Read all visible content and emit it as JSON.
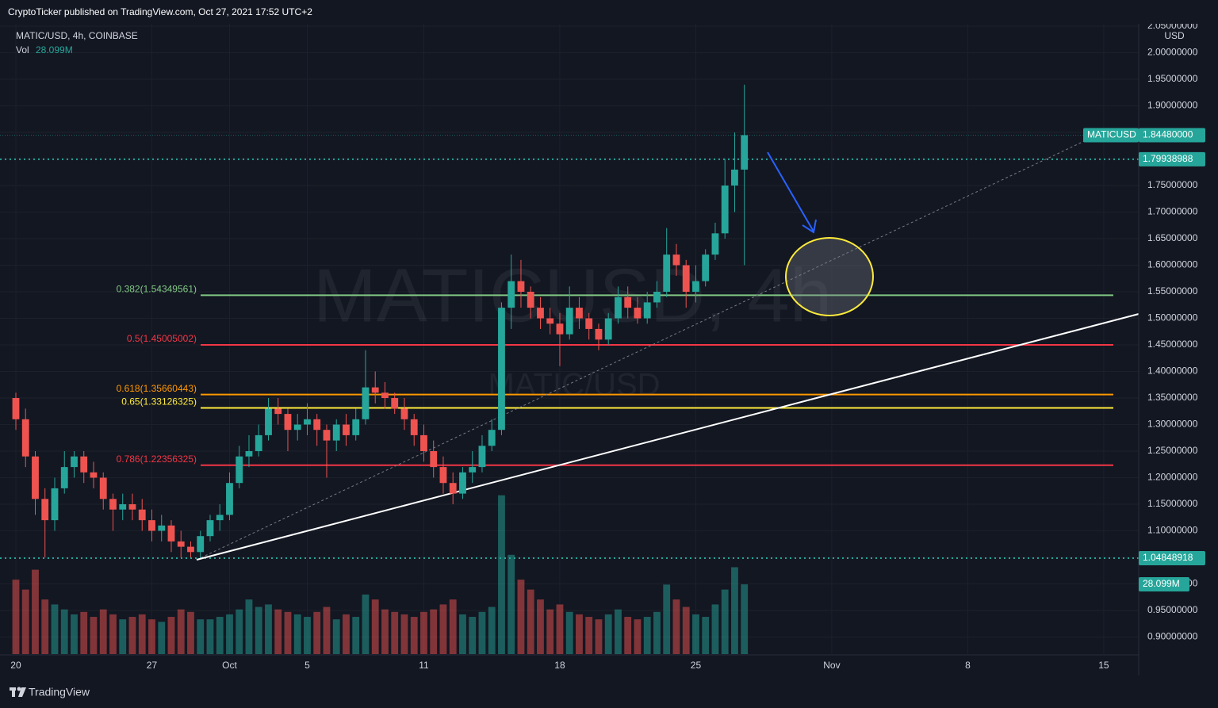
{
  "header": {
    "publisher": "CryptoTicker published on TradingView.com, Oct 27, 2021 17:52 UTC+2"
  },
  "chart_data": {
    "type": "candlestick",
    "symbol": "MATIC/USD, 4h, COINBASE",
    "watermark": "MATICUSD, 4h",
    "watermark_sub": "MATIC/USD",
    "currency": "USD",
    "volume_title": "Vol",
    "volume_label": "28.099M",
    "x": [
      "2021-09-20T00:00",
      "2021-09-20T12:00",
      "2021-09-21T00:00",
      "2021-09-21T12:00",
      "2021-09-22T00:00",
      "2021-09-22T12:00",
      "2021-09-23T00:00",
      "2021-09-23T12:00",
      "2021-09-24T00:00",
      "2021-09-24T12:00",
      "2021-09-25T00:00",
      "2021-09-25T12:00",
      "2021-09-26T00:00",
      "2021-09-26T12:00",
      "2021-09-27T00:00",
      "2021-09-27T12:00",
      "2021-09-28T00:00",
      "2021-09-28T12:00",
      "2021-09-29T00:00",
      "2021-09-29T12:00",
      "2021-09-30T00:00",
      "2021-09-30T12:00",
      "2021-10-01T00:00",
      "2021-10-01T12:00",
      "2021-10-02T00:00",
      "2021-10-02T12:00",
      "2021-10-03T00:00",
      "2021-10-03T12:00",
      "2021-10-04T00:00",
      "2021-10-04T12:00",
      "2021-10-05T00:00",
      "2021-10-05T12:00",
      "2021-10-06T00:00",
      "2021-10-06T12:00",
      "2021-10-07T00:00",
      "2021-10-07T12:00",
      "2021-10-08T00:00",
      "2021-10-08T12:00",
      "2021-10-09T00:00",
      "2021-10-09T12:00",
      "2021-10-10T00:00",
      "2021-10-10T12:00",
      "2021-10-11T00:00",
      "2021-10-11T12:00",
      "2021-10-12T00:00",
      "2021-10-12T12:00",
      "2021-10-13T00:00",
      "2021-10-13T12:00",
      "2021-10-14T00:00",
      "2021-10-14T12:00",
      "2021-10-15T00:00",
      "2021-10-15T12:00",
      "2021-10-16T00:00",
      "2021-10-16T12:00",
      "2021-10-17T00:00",
      "2021-10-17T12:00",
      "2021-10-18T00:00",
      "2021-10-18T12:00",
      "2021-10-19T00:00",
      "2021-10-19T12:00",
      "2021-10-20T00:00",
      "2021-10-20T12:00",
      "2021-10-21T00:00",
      "2021-10-21T12:00",
      "2021-10-22T00:00",
      "2021-10-22T12:00",
      "2021-10-23T00:00",
      "2021-10-23T12:00",
      "2021-10-24T00:00",
      "2021-10-24T12:00",
      "2021-10-25T00:00",
      "2021-10-25T12:00",
      "2021-10-26T00:00",
      "2021-10-26T12:00",
      "2021-10-27T00:00",
      "2021-10-27T12:00"
    ],
    "open": [
      1.35,
      1.31,
      1.24,
      1.16,
      1.12,
      1.18,
      1.22,
      1.24,
      1.21,
      1.2,
      1.16,
      1.14,
      1.15,
      1.14,
      1.12,
      1.1,
      1.11,
      1.08,
      1.07,
      1.06,
      1.09,
      1.12,
      1.13,
      1.19,
      1.24,
      1.25,
      1.28,
      1.33,
      1.32,
      1.29,
      1.3,
      1.31,
      1.29,
      1.27,
      1.3,
      1.28,
      1.31,
      1.37,
      1.36,
      1.35,
      1.33,
      1.31,
      1.28,
      1.25,
      1.22,
      1.19,
      1.17,
      1.21,
      1.22,
      1.26,
      1.29,
      1.52,
      1.57,
      1.55,
      1.52,
      1.5,
      1.49,
      1.47,
      1.52,
      1.5,
      1.48,
      1.46,
      1.5,
      1.54,
      1.52,
      1.5,
      1.53,
      1.55,
      1.62,
      1.6,
      1.55,
      1.57,
      1.62,
      1.66,
      1.75,
      1.78
    ],
    "high": [
      1.36,
      1.33,
      1.25,
      1.18,
      1.2,
      1.25,
      1.25,
      1.25,
      1.23,
      1.21,
      1.17,
      1.17,
      1.17,
      1.16,
      1.14,
      1.13,
      1.12,
      1.1,
      1.08,
      1.1,
      1.13,
      1.15,
      1.21,
      1.26,
      1.28,
      1.3,
      1.35,
      1.35,
      1.33,
      1.32,
      1.34,
      1.32,
      1.3,
      1.31,
      1.32,
      1.33,
      1.44,
      1.4,
      1.38,
      1.36,
      1.35,
      1.32,
      1.3,
      1.27,
      1.24,
      1.21,
      1.22,
      1.25,
      1.28,
      1.31,
      1.53,
      1.62,
      1.61,
      1.56,
      1.54,
      1.52,
      1.51,
      1.56,
      1.54,
      1.51,
      1.49,
      1.51,
      1.56,
      1.56,
      1.54,
      1.55,
      1.57,
      1.67,
      1.64,
      1.61,
      1.6,
      1.63,
      1.68,
      1.8,
      1.85,
      1.94
    ],
    "low": [
      1.29,
      1.22,
      1.13,
      1.05,
      1.1,
      1.17,
      1.2,
      1.19,
      1.18,
      1.14,
      1.1,
      1.12,
      1.12,
      1.1,
      1.08,
      1.08,
      1.06,
      1.05,
      1.05,
      1.05,
      1.08,
      1.1,
      1.12,
      1.18,
      1.22,
      1.24,
      1.27,
      1.3,
      1.25,
      1.27,
      1.28,
      1.26,
      1.2,
      1.25,
      1.26,
      1.27,
      1.3,
      1.34,
      1.33,
      1.32,
      1.29,
      1.26,
      1.23,
      1.2,
      1.17,
      1.15,
      1.16,
      1.19,
      1.21,
      1.25,
      1.28,
      1.48,
      1.52,
      1.5,
      1.48,
      1.47,
      1.41,
      1.46,
      1.48,
      1.46,
      1.44,
      1.45,
      1.49,
      1.5,
      1.49,
      1.49,
      1.52,
      1.54,
      1.58,
      1.52,
      1.53,
      1.56,
      1.61,
      1.65,
      1.7,
      1.6
    ],
    "close": [
      1.31,
      1.24,
      1.16,
      1.12,
      1.18,
      1.22,
      1.24,
      1.21,
      1.2,
      1.16,
      1.14,
      1.15,
      1.14,
      1.12,
      1.1,
      1.11,
      1.08,
      1.07,
      1.06,
      1.09,
      1.12,
      1.13,
      1.19,
      1.24,
      1.25,
      1.28,
      1.33,
      1.32,
      1.29,
      1.3,
      1.31,
      1.29,
      1.27,
      1.3,
      1.28,
      1.31,
      1.37,
      1.36,
      1.35,
      1.33,
      1.31,
      1.28,
      1.25,
      1.22,
      1.19,
      1.17,
      1.21,
      1.22,
      1.26,
      1.29,
      1.52,
      1.57,
      1.55,
      1.52,
      1.5,
      1.49,
      1.47,
      1.52,
      1.5,
      1.48,
      1.46,
      1.5,
      1.54,
      1.52,
      1.5,
      1.53,
      1.55,
      1.62,
      1.6,
      1.55,
      1.57,
      1.62,
      1.66,
      1.75,
      1.78,
      1.8448
    ],
    "volume": [
      30,
      26,
      34,
      22,
      20,
      18,
      16,
      17,
      15,
      18,
      16,
      14,
      15,
      16,
      14,
      13,
      15,
      18,
      17,
      14,
      14,
      15,
      16,
      18,
      22,
      19,
      20,
      18,
      17,
      16,
      15,
      17,
      19,
      14,
      16,
      15,
      24,
      22,
      18,
      17,
      16,
      15,
      17,
      18,
      20,
      22,
      16,
      15,
      17,
      19,
      64,
      40,
      30,
      26,
      22,
      18,
      20,
      17,
      16,
      15,
      14,
      16,
      18,
      15,
      14,
      15,
      17,
      28,
      22,
      19,
      16,
      15,
      20,
      26,
      35,
      28.099
    ],
    "up_color": "#26a69a",
    "down_color": "#ef5350",
    "xlim": [
      "2021-09-19T04:25",
      "2021-11-16T19:10"
    ],
    "ylim": [
      0.8679,
      2.0993
    ],
    "yticks": [
      {
        "value": 0.9,
        "label": "0.90000000"
      },
      {
        "value": 0.95,
        "label": "0.95000000"
      },
      {
        "value": 1.0,
        "label": "1.00000000"
      },
      {
        "value": 1.05,
        "label": "1.05000000"
      },
      {
        "value": 1.1,
        "label": "1.10000000"
      },
      {
        "value": 1.15,
        "label": "1.15000000"
      },
      {
        "value": 1.2,
        "label": "1.20000000"
      },
      {
        "value": 1.25,
        "label": "1.25000000"
      },
      {
        "value": 1.3,
        "label": "1.30000000"
      },
      {
        "value": 1.35,
        "label": "1.35000000"
      },
      {
        "value": 1.4,
        "label": "1.40000000"
      },
      {
        "value": 1.45,
        "label": "1.45000000"
      },
      {
        "value": 1.5,
        "label": "1.50000000"
      },
      {
        "value": 1.55,
        "label": "1.55000000"
      },
      {
        "value": 1.6,
        "label": "1.60000000"
      },
      {
        "value": 1.65,
        "label": "1.65000000"
      },
      {
        "value": 1.7,
        "label": "1.70000000"
      },
      {
        "value": 1.75,
        "label": "1.75000000"
      },
      {
        "value": 1.8,
        "label": "1.80000000"
      },
      {
        "value": 1.85,
        "label": "1.85000000"
      },
      {
        "value": 1.9,
        "label": "1.90000000"
      },
      {
        "value": 1.95,
        "label": "1.95000000"
      },
      {
        "value": 2.0,
        "label": "2.00000000"
      },
      {
        "value": 2.05,
        "label": "2.05000000"
      }
    ],
    "xticks": [
      {
        "value": "2021-09-20",
        "label": "20"
      },
      {
        "value": "2021-09-27",
        "label": "27"
      },
      {
        "value": "2021-10-01",
        "label": "Oct"
      },
      {
        "value": "2021-10-05",
        "label": "5"
      },
      {
        "value": "2021-10-11",
        "label": "11"
      },
      {
        "value": "2021-10-18",
        "label": "18"
      },
      {
        "value": "2021-10-25",
        "label": "25"
      },
      {
        "value": "2021-11-01",
        "label": "Nov"
      },
      {
        "value": "2021-11-08",
        "label": "8"
      },
      {
        "value": "2021-11-15",
        "label": "15"
      }
    ],
    "last_price": {
      "symbol": "MATICUSD",
      "value": 1.8448,
      "label": "1.84480000"
    },
    "price_lines": [
      1.79938988,
      1.04848918
    ],
    "fib_levels": [
      {
        "label": "0.382(1.54349561)",
        "value": 1.54349561,
        "color": "#81c784"
      },
      {
        "label": "0.5(1.45005002)",
        "value": 1.45005002,
        "color": "#f23645"
      },
      {
        "label": "0.618(1.35660443)",
        "value": 1.35660443,
        "color": "#ff9800"
      },
      {
        "label": "0.65(1.33126325)",
        "value": 1.33126325,
        "color": "#ffeb3b"
      },
      {
        "label": "0.786(1.22356325)",
        "value": 1.22356325,
        "color": "#f23645"
      }
    ]
  },
  "footer": {
    "brand": "TradingView"
  }
}
